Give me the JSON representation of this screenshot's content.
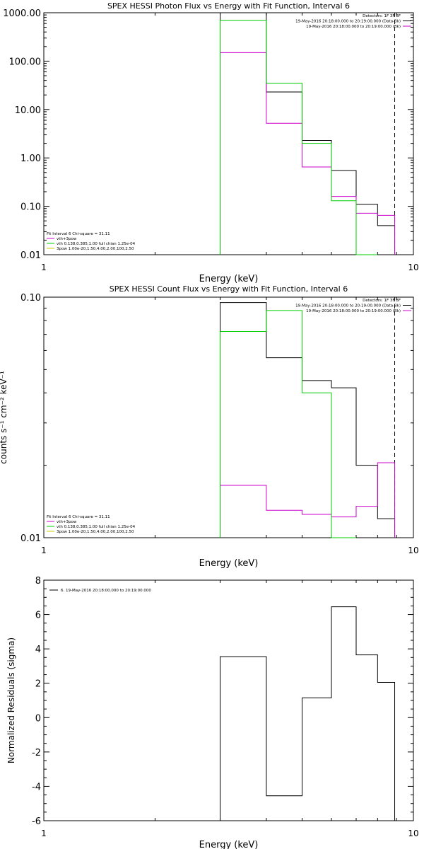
{
  "chart_data": [
    {
      "type": "line",
      "title": "SPEX HESSI Photon Flux vs Energy with Fit Function, Interval 6",
      "xlabel": "Energy (keV)",
      "ylabel": "",
      "xscale": "log",
      "yscale": "log",
      "xlim": [
        1,
        10
      ],
      "ylim": [
        0.01,
        1000
      ],
      "x_ticks": [
        "1",
        "10"
      ],
      "y_ticks": [
        "0.01",
        "0.10",
        "1.00",
        "10.00",
        "100.00",
        "1000.00"
      ],
      "y_tick_values": [
        0.01,
        0.1,
        1,
        10,
        100,
        1000
      ],
      "grid": false,
      "legend_top": [
        "Detectors: 1F 3F 8F",
        "19-May-2016 20:18:00.000 to 20:19:00.000 (Data-Bk)",
        "19-May-2016 20:18:00.000 to 20:19:00.000 (Bk)"
      ],
      "legend_bottom": [
        "Fit Interval  6    Chi-square = 31.11",
        "vth+3pow",
        "vth 0.138,0.385,1.00  full chian 1.25e-04",
        "3pow 1.00e-20,1.50,4.00,2.00,100,2.50"
      ],
      "legend_bottom_colors": [
        "#000000",
        "#cc00cc",
        "#00cc00",
        "#cccc00"
      ],
      "vline_x": 8.9,
      "bin_edges": [
        3.0,
        4.0,
        5.0,
        6.0,
        7.0,
        8.0,
        8.9
      ],
      "series": [
        {
          "name": "19-May-2016 20:18:00.000 to 20:19:00.000 (Data-Bk)",
          "color": "#000000",
          "values": [
            1000,
            23,
            2.3,
            0.55,
            0.11,
            0.04
          ]
        },
        {
          "name": "19-May-2016 20:18:00.000 to 20:19:00.000 (Bk)",
          "color": "#cc00cc",
          "values": [
            150,
            5.2,
            0.65,
            0.16,
            0.072,
            0.065
          ]
        },
        {
          "name": "vth+3pow",
          "color": "#00cc00",
          "values": [
            700,
            35,
            2.0,
            0.13,
            0.01,
            null
          ]
        }
      ]
    },
    {
      "type": "line",
      "title": "SPEX HESSI Count Flux vs Energy with Fit Function, Interval 6",
      "xlabel": "Energy (keV)",
      "ylabel": "counts s⁻¹ cm⁻² keV⁻¹",
      "xscale": "log",
      "yscale": "log",
      "xlim": [
        1,
        10
      ],
      "ylim": [
        0.01,
        0.1
      ],
      "x_ticks": [
        "1",
        "10"
      ],
      "y_ticks": [
        "0.01",
        "0.10"
      ],
      "y_tick_values": [
        0.01,
        0.1
      ],
      "grid": false,
      "legend_top": [
        "Detectors: 1F 3F 8F",
        "19-May-2016 20:18:00.000 to 20:19:00.000 (Data-Bk)",
        "19-May-2016 20:18:00.000 to 20:19:00.000 (Bk)"
      ],
      "legend_bottom": [
        "Fit Interval  6    Chi-square = 31.11",
        "vth+3pow",
        "vth 0.138,0.385,1.00  full chian 1.25e-04",
        "3pow 1.00e-20,1.50,4.00,2.00,100,2.50"
      ],
      "legend_bottom_colors": [
        "#000000",
        "#cc00cc",
        "#00cc00",
        "#cccc00"
      ],
      "vline_x": 8.9,
      "bin_edges": [
        3.0,
        4.0,
        5.0,
        6.0,
        7.0,
        8.0,
        8.9
      ],
      "series": [
        {
          "name": "19-May-2016 20:18:00.000 to 20:19:00.000 (Data-Bk)",
          "color": "#000000",
          "values": [
            0.095,
            0.056,
            0.045,
            0.042,
            0.02,
            0.012
          ]
        },
        {
          "name": "19-May-2016 20:18:00.000 to 20:19:00.000 (Bk)",
          "color": "#cc00cc",
          "values": [
            0.0165,
            0.013,
            0.0125,
            0.0122,
            0.0135,
            0.0205
          ]
        },
        {
          "name": "vth+3pow",
          "color": "#00cc00",
          "values": [
            0.072,
            0.088,
            0.04,
            0.01,
            null,
            null
          ]
        }
      ]
    },
    {
      "type": "line",
      "title": "",
      "xlabel": "Energy (keV)",
      "ylabel": "Normalized Residuals (sigma)",
      "xscale": "log",
      "yscale": "linear",
      "xlim": [
        1,
        10
      ],
      "ylim": [
        -6,
        8
      ],
      "x_ticks": [
        "1",
        "10"
      ],
      "y_ticks": [
        "-6",
        "-4",
        "-2",
        "0",
        "2",
        "4",
        "6",
        "8"
      ],
      "y_tick_values": [
        -6,
        -4,
        -2,
        0,
        2,
        4,
        6,
        8
      ],
      "grid": false,
      "legend_top": [
        "6. 19-May-2016 20:18:00.000 to 20:19:00.000"
      ],
      "bin_edges": [
        3.0,
        4.0,
        5.0,
        6.0,
        7.0,
        8.0,
        8.9
      ],
      "series": [
        {
          "name": "6. 19-May-2016 20:18:00.000 to 20:19:00.000",
          "color": "#000000",
          "values": [
            3.55,
            -4.55,
            1.15,
            6.45,
            3.65,
            2.05
          ]
        }
      ]
    }
  ]
}
